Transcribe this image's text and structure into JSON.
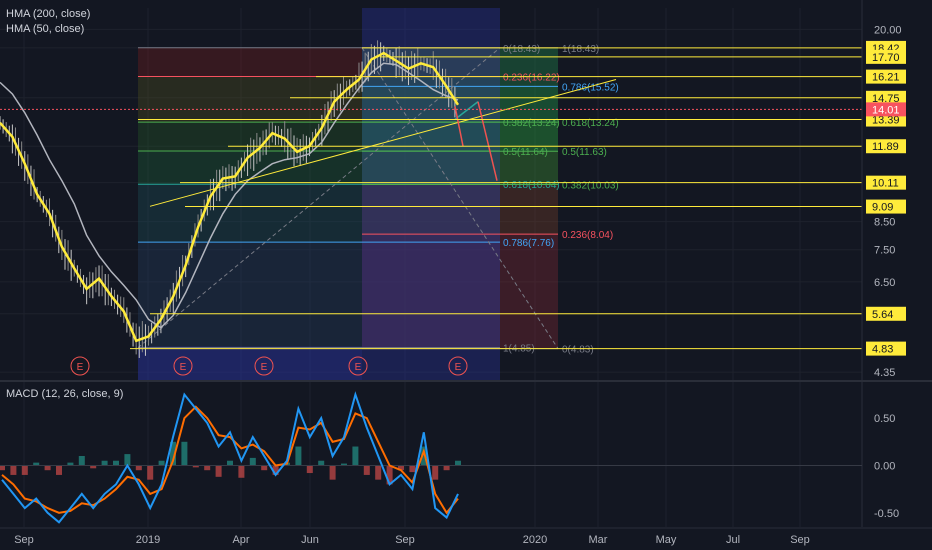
{
  "legend": {
    "hma200": "HMA (200, close)",
    "hma50": "HMA (50, close)",
    "macd": "MACD (12, 26, close, 9)"
  },
  "colors": {
    "background": "#131722",
    "grid": "#1e222d",
    "level_line": "#ffeb3b",
    "price_tag_bg": "#ffeb3b",
    "current_tag_bg": "#f7525f",
    "macd_line": "#2196f3",
    "signal_line": "#ff6d00",
    "hist_up": "#26a69a",
    "hist_down": "#ef5350",
    "hma50": "#ffeb3b",
    "hma200": "#b2b5be",
    "earnings": "#ef5350"
  },
  "chart_data": [
    {
      "type": "candlestick",
      "title": "",
      "yscale": "log",
      "ylim": [
        4.2,
        22
      ],
      "x_ticks": [
        "Sep",
        "2019",
        "Apr",
        "Jun",
        "Sep",
        "2020",
        "Mar",
        "May",
        "Jul",
        "Sep"
      ],
      "y_ticks": [
        20.0,
        8.5,
        7.5,
        6.5,
        4.35
      ],
      "price_levels": [
        18.42,
        17.7,
        16.21,
        14.75,
        13.39,
        11.89,
        10.11,
        9.09,
        5.64,
        4.83
      ],
      "current_price": 14.01,
      "earnings_markers": [
        "E",
        "E",
        "E",
        "E",
        "E"
      ],
      "fib_labels_left": [
        {
          "text": "0(18.43)",
          "value": 18.43
        },
        {
          "text": "0.236(16.22)",
          "value": 16.22
        },
        {
          "text": "0.382(13.24)",
          "value": 13.24
        },
        {
          "text": "0.5(11.64)",
          "value": 11.64
        },
        {
          "text": "0.618(10.04)",
          "value": 10.04
        },
        {
          "text": "0.786(7.76)",
          "value": 7.76
        },
        {
          "text": "1(4.85)",
          "value": 4.85
        }
      ],
      "fib_labels_right": [
        {
          "text": "1(18.43)",
          "value": 18.43
        },
        {
          "text": "0.786(15.52)",
          "value": 15.52
        },
        {
          "text": "0.618(13.24)",
          "value": 13.24
        },
        {
          "text": "0.5(11.63)",
          "value": 11.63
        },
        {
          "text": "0.382(10.03)",
          "value": 10.03
        },
        {
          "text": "0.236(8.04)",
          "value": 8.04
        },
        {
          "text": "0(4.83)",
          "value": 4.83
        }
      ],
      "series": [
        {
          "name": "HMA (50, close)",
          "values": [
            13.2,
            12.4,
            11.0,
            9.6,
            8.8,
            7.6,
            6.9,
            6.3,
            6.6,
            6.1,
            5.7,
            5.0,
            5.1,
            5.5,
            6.1,
            7.0,
            8.3,
            9.5,
            10.3,
            10.4,
            11.3,
            11.8,
            12.6,
            12.3,
            11.6,
            11.9,
            12.9,
            14.5,
            15.3,
            16.0,
            17.5,
            18.0,
            17.4,
            16.8,
            17.2,
            16.9,
            15.6,
            14.3
          ]
        },
        {
          "name": "HMA (200, close)",
          "values": [
            15.8,
            15.0,
            13.8,
            12.5,
            11.2,
            10.2,
            9.2,
            8.0,
            7.3,
            6.8,
            6.4,
            6.0,
            5.5,
            5.3,
            5.6,
            6.2,
            7.0,
            7.9,
            8.8,
            9.6,
            10.2,
            10.6,
            11.0,
            11.2,
            11.3,
            11.5,
            12.1,
            13.2,
            14.3,
            15.4,
            16.5,
            17.2,
            17.1,
            16.5,
            15.9,
            15.3,
            14.9,
            14.6
          ]
        }
      ]
    },
    {
      "type": "line",
      "title": "MACD (12, 26, close, 9)",
      "ylim": [
        -0.65,
        0.85
      ],
      "y_ticks": [
        0.5,
        0.0,
        -0.5
      ],
      "series": [
        {
          "name": "MACD",
          "values": [
            -0.15,
            -0.3,
            -0.45,
            -0.35,
            -0.5,
            -0.6,
            -0.45,
            -0.3,
            -0.45,
            -0.3,
            -0.2,
            0.0,
            -0.2,
            -0.45,
            -0.2,
            0.3,
            0.75,
            0.6,
            0.45,
            0.2,
            0.35,
            0.05,
            0.3,
            0.1,
            -0.1,
            0.05,
            0.6,
            0.3,
            0.5,
            0.1,
            0.3,
            0.75,
            0.4,
            0.1,
            -0.2,
            -0.1,
            -0.25,
            0.35,
            -0.45,
            -0.55,
            -0.3
          ]
        },
        {
          "name": "Signal",
          "values": [
            -0.1,
            -0.2,
            -0.35,
            -0.38,
            -0.45,
            -0.5,
            -0.48,
            -0.4,
            -0.42,
            -0.35,
            -0.25,
            -0.12,
            -0.15,
            -0.3,
            -0.25,
            0.05,
            0.5,
            0.62,
            0.5,
            0.32,
            0.3,
            0.18,
            0.22,
            0.15,
            0.0,
            0.02,
            0.4,
            0.38,
            0.45,
            0.25,
            0.28,
            0.55,
            0.5,
            0.25,
            0.0,
            -0.05,
            -0.18,
            0.15,
            -0.3,
            -0.5,
            -0.35
          ]
        }
      ]
    }
  ]
}
